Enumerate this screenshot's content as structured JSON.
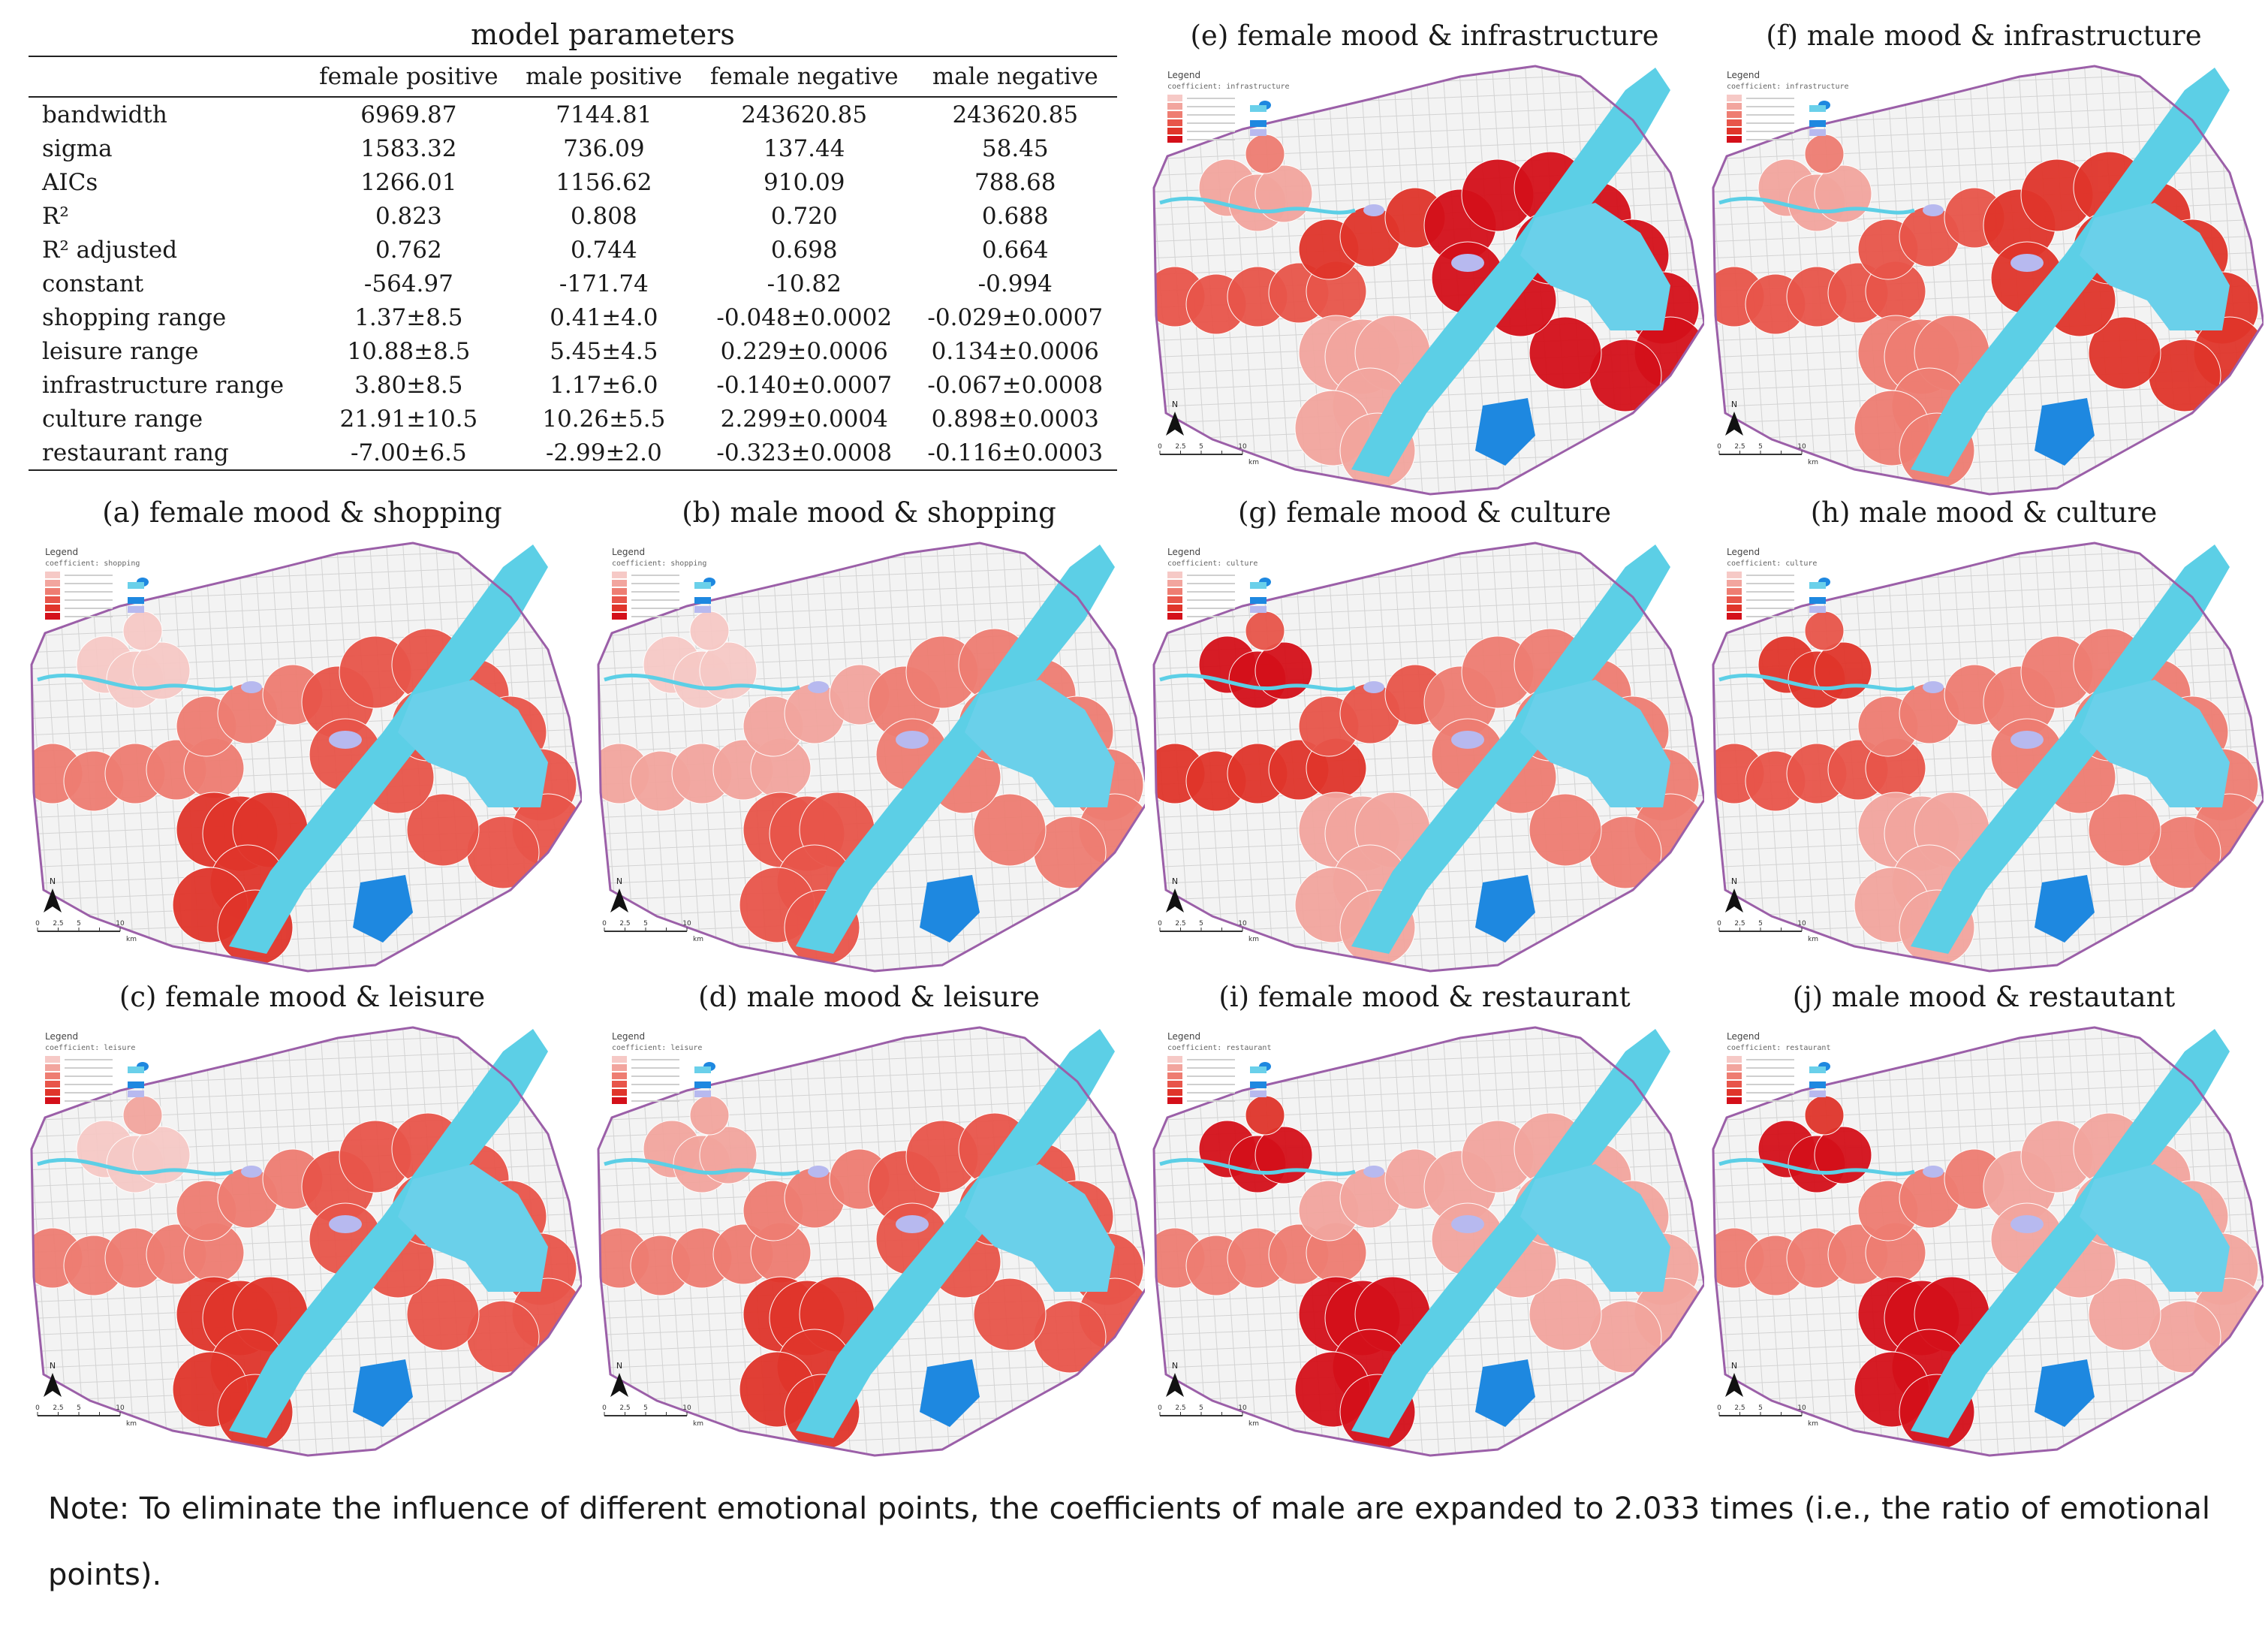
{
  "table": {
    "title": "model parameters",
    "columns": [
      "",
      "female positive",
      "male positive",
      "female negative",
      "male negative"
    ],
    "rows": [
      [
        "bandwidth",
        "6969.87",
        "7144.81",
        "243620.85",
        "243620.85"
      ],
      [
        "sigma",
        "1583.32",
        "736.09",
        "137.44",
        "58.45"
      ],
      [
        "AICs",
        "1266.01",
        "1156.62",
        "910.09",
        "788.68"
      ],
      [
        "R²",
        "0.823",
        "0.808",
        "0.720",
        "0.688"
      ],
      [
        "R² adjusted",
        "0.762",
        "0.744",
        "0.698",
        "0.664"
      ],
      [
        "constant",
        "-564.97",
        "-171.74",
        "-10.82",
        "-0.994"
      ],
      [
        "shopping range",
        "1.37±8.5",
        "0.41±4.0",
        "-0.048±0.0002",
        "-0.029±0.0007"
      ],
      [
        "leisure range",
        "10.88±8.5",
        "5.45±4.5",
        "0.229±0.0006",
        "0.134±0.0006"
      ],
      [
        "infrastructure range",
        "3.80±8.5",
        "1.17±6.0",
        "-0.140±0.0007",
        "-0.067±0.0008"
      ],
      [
        "culture range",
        "21.91±10.5",
        "10.26±5.5",
        "2.299±0.0004",
        "0.898±0.0003"
      ],
      [
        "restaurant rang",
        "-7.00±6.5",
        "-2.99±2.0",
        "-0.323±0.0008",
        "-0.116±0.0003"
      ]
    ]
  },
  "panels": [
    {
      "id": "a",
      "title": "(a) female mood & shopping",
      "legend_field": "coefficient: shopping",
      "intensity": [
        1,
        1,
        3,
        3,
        4,
        5
      ]
    },
    {
      "id": "b",
      "title": "(b) male mood & shopping",
      "legend_field": "coefficient: shopping",
      "intensity": [
        1,
        1,
        2,
        2,
        3,
        4
      ]
    },
    {
      "id": "c",
      "title": "(c) female mood & leisure",
      "legend_field": "coefficient: leisure",
      "intensity": [
        1,
        2,
        3,
        3,
        4,
        5
      ]
    },
    {
      "id": "d",
      "title": "(d) male mood & leisure",
      "legend_field": "coefficient: leisure",
      "intensity": [
        2,
        2,
        3,
        3,
        4,
        5
      ]
    },
    {
      "id": "e",
      "title": "(e) female mood & infrastructure",
      "legend_field": "coefficient: infrastructure",
      "intensity": [
        2,
        3,
        4,
        5,
        6,
        2
      ]
    },
    {
      "id": "f",
      "title": "(f) male mood & infrastructure",
      "legend_field": "coefficient: infrastructure",
      "intensity": [
        2,
        3,
        4,
        4,
        5,
        3
      ]
    },
    {
      "id": "g",
      "title": "(g) female mood & culture",
      "legend_field": "coefficient: culture",
      "intensity": [
        6,
        4,
        5,
        4,
        3,
        2
      ]
    },
    {
      "id": "h",
      "title": "(h) male mood & culture",
      "legend_field": "coefficient: culture",
      "intensity": [
        5,
        4,
        4,
        3,
        3,
        2
      ]
    },
    {
      "id": "i",
      "title": "(i) female mood & restaurant",
      "legend_field": "coefficient: restaurant",
      "intensity": [
        6,
        5,
        3,
        2,
        2,
        6
      ]
    },
    {
      "id": "j",
      "title": "(j) male mood & restautant",
      "legend_field": "coefficient: restaurant",
      "intensity": [
        6,
        5,
        3,
        3,
        2,
        6
      ]
    }
  ],
  "map_labels": {
    "legend": "Legend",
    "north": "N",
    "scale_ticks": [
      "0",
      "2.5",
      "5",
      "",
      "10"
    ],
    "scale_unit": "km"
  },
  "colors": {
    "river": "#5ccfe6",
    "lake": "#6ad0ea",
    "lake_dark": "#1e88e0",
    "lake_pale": "#b7b9ef",
    "boundary": "#9b5fa8",
    "ramp": [
      "#f6c9c6",
      "#f2a59e",
      "#ee7d72",
      "#e8554a",
      "#e0352b",
      "#d4101a"
    ]
  },
  "note": "Note: To eliminate the influence of different emotional points, the coefficients of male are expanded to 2.033 times (i.e., the ratio of emotional points)."
}
